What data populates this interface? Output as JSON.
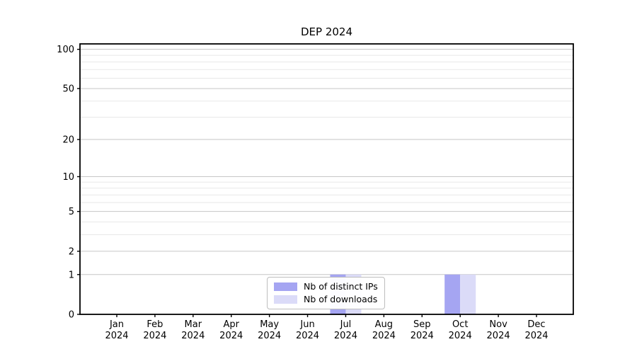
{
  "chart_data": {
    "type": "bar",
    "title": "DEP 2024",
    "categories": [
      "Jan",
      "Feb",
      "Mar",
      "Apr",
      "May",
      "Jun",
      "Jul",
      "Aug",
      "Sep",
      "Oct",
      "Nov",
      "Dec"
    ],
    "category_year_suffix": "2024",
    "series": [
      {
        "name": "Nb of distinct IPs",
        "color": "#a5a5f2",
        "values": [
          0,
          0,
          0,
          0,
          0,
          0,
          1,
          0,
          0,
          1,
          0,
          0
        ]
      },
      {
        "name": "Nb of downloads",
        "color": "#dbdbf8",
        "values": [
          0,
          0,
          0,
          0,
          0,
          0,
          1,
          0,
          0,
          1,
          0,
          0
        ]
      }
    ],
    "xlabel": "",
    "ylabel": "",
    "y_scale": "log1p",
    "y_ticks": [
      0,
      1,
      2,
      5,
      10,
      20,
      50,
      100
    ],
    "y_minor_gridlines": [
      3,
      4,
      6,
      7,
      8,
      9,
      30,
      40,
      60,
      70,
      80,
      90
    ],
    "ylim": [
      0,
      110
    ],
    "grid": "horizontal",
    "legend_position": "lower-center-inside"
  },
  "colors": {
    "background": "#ffffff",
    "axis": "#000000",
    "grid_major": "#c6c6c6",
    "grid_minor": "#e8e8e8",
    "legend_border": "#bdbdbd"
  }
}
